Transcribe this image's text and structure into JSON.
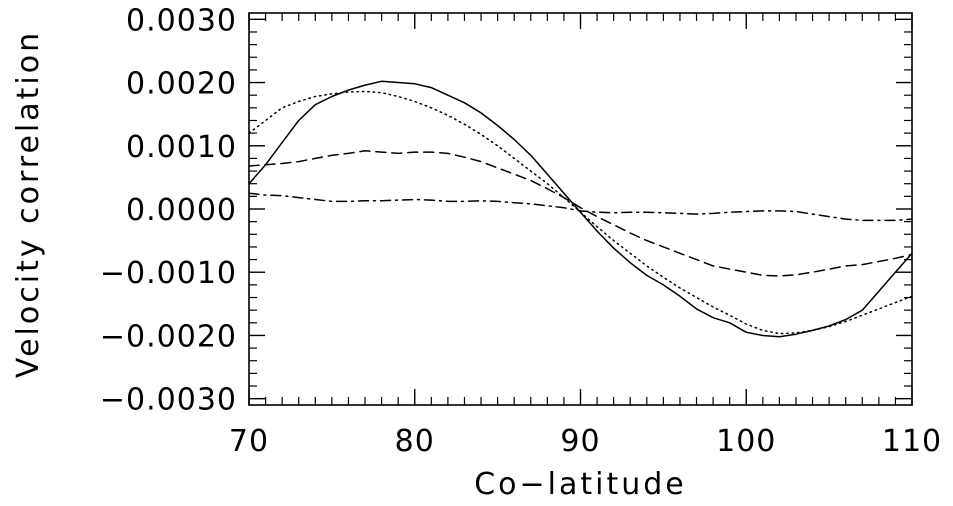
{
  "chart_data": {
    "type": "line",
    "title": "",
    "xlabel": "Co−latitude",
    "ylabel": "Velocity correlation",
    "xlim": [
      70,
      110
    ],
    "ylim": [
      -0.0031,
      0.0031
    ],
    "x_major_ticks": [
      70,
      80,
      90,
      100,
      110
    ],
    "x_tick_labels": [
      "70",
      "80",
      "90",
      "100",
      "110"
    ],
    "x_minor_step": 1,
    "y_major_ticks": [
      0.003,
      0.002,
      0.001,
      0.0,
      -0.001,
      -0.002,
      -0.003
    ],
    "y_tick_labels": [
      "0.0030",
      "0.0020",
      "0.0010",
      "0.0000",
      "−0.0010",
      "−0.0020",
      "−0.0030"
    ],
    "y_minor_step": 0.0002,
    "grid": false,
    "legend": "none",
    "line_color": "#000000",
    "series": [
      {
        "style": "solid",
        "x": [
          70,
          71,
          72,
          73,
          74,
          75,
          76,
          77,
          78,
          79,
          80,
          81,
          82,
          83,
          84,
          85,
          86,
          87,
          88,
          89,
          90,
          91,
          92,
          93,
          94,
          95,
          96,
          97,
          98,
          99,
          100,
          101,
          102,
          103,
          104,
          105,
          106,
          107,
          108,
          109,
          110
        ],
        "values": [
          0.0004,
          0.0007,
          0.00105,
          0.0014,
          0.00165,
          0.00178,
          0.00188,
          0.00196,
          0.00202,
          0.002,
          0.00198,
          0.00192,
          0.0018,
          0.00168,
          0.00152,
          0.00132,
          0.0011,
          0.00085,
          0.00055,
          0.00025,
          -5e-05,
          -0.00035,
          -0.00062,
          -0.00085,
          -0.00105,
          -0.0012,
          -0.00138,
          -0.00158,
          -0.00172,
          -0.0018,
          -0.00195,
          -0.002,
          -0.00202,
          -0.00198,
          -0.00192,
          -0.00185,
          -0.00175,
          -0.0016,
          -0.0013,
          -0.001,
          -0.0007
        ]
      },
      {
        "style": "dotted",
        "x": [
          70,
          71,
          72,
          73,
          74,
          75,
          76,
          77,
          78,
          79,
          80,
          81,
          82,
          83,
          84,
          85,
          86,
          87,
          88,
          89,
          90,
          91,
          92,
          93,
          94,
          95,
          96,
          97,
          98,
          99,
          100,
          101,
          102,
          103,
          104,
          105,
          106,
          107,
          108,
          109,
          110
        ],
        "values": [
          0.0012,
          0.0014,
          0.0016,
          0.0017,
          0.00178,
          0.00182,
          0.00185,
          0.00186,
          0.00184,
          0.00178,
          0.0017,
          0.0016,
          0.00148,
          0.00134,
          0.00118,
          0.001,
          0.0008,
          0.0006,
          0.0004,
          0.00018,
          -5e-05,
          -0.00028,
          -0.0005,
          -0.0007,
          -0.0009,
          -0.00108,
          -0.00125,
          -0.0014,
          -0.00155,
          -0.00168,
          -0.00182,
          -0.00192,
          -0.00197,
          -0.00196,
          -0.00192,
          -0.00186,
          -0.00178,
          -0.00168,
          -0.00158,
          -0.00148,
          -0.00138
        ]
      },
      {
        "style": "dashed",
        "x": [
          70,
          71,
          72,
          73,
          74,
          75,
          76,
          77,
          78,
          79,
          80,
          81,
          82,
          83,
          84,
          85,
          86,
          87,
          88,
          89,
          90,
          91,
          92,
          93,
          94,
          95,
          96,
          97,
          98,
          99,
          100,
          101,
          102,
          103,
          104,
          105,
          106,
          107,
          108,
          109,
          110
        ],
        "values": [
          0.00068,
          0.0007,
          0.00072,
          0.00075,
          0.0008,
          0.00085,
          0.00088,
          0.00092,
          0.0009,
          0.00088,
          0.0009,
          0.0009,
          0.00088,
          0.00082,
          0.00075,
          0.00065,
          0.00055,
          0.00045,
          0.00032,
          0.00018,
          2e-05,
          -0.00012,
          -0.00025,
          -0.00038,
          -0.0005,
          -0.0006,
          -0.0007,
          -0.0008,
          -0.0009,
          -0.00095,
          -0.001,
          -0.00105,
          -0.00106,
          -0.00104,
          -0.001,
          -0.00095,
          -0.0009,
          -0.00088,
          -0.00083,
          -0.00078,
          -0.00072
        ]
      },
      {
        "style": "dash-dot",
        "x": [
          70,
          71,
          72,
          73,
          74,
          75,
          76,
          77,
          78,
          79,
          80,
          81,
          82,
          83,
          84,
          85,
          86,
          87,
          88,
          89,
          90,
          91,
          92,
          93,
          94,
          95,
          96,
          97,
          98,
          99,
          100,
          101,
          102,
          103,
          104,
          105,
          106,
          107,
          108,
          109,
          110
        ],
        "values": [
          0.00025,
          0.00022,
          0.00021,
          0.00018,
          0.00015,
          0.00012,
          0.00012,
          0.00013,
          0.00013,
          0.00014,
          0.00015,
          0.00014,
          0.00012,
          0.00012,
          0.00013,
          0.00012,
          0.0001,
          8e-05,
          5e-05,
          2e-05,
          -3e-05,
          -5e-05,
          -6e-05,
          -5e-05,
          -5e-05,
          -6e-05,
          -7e-05,
          -8e-05,
          -7e-05,
          -5e-05,
          -4e-05,
          -3e-05,
          -3e-05,
          -4e-05,
          -8e-05,
          -0.00012,
          -0.00016,
          -0.00018,
          -0.00018,
          -0.00018,
          -0.00016
        ]
      }
    ]
  }
}
